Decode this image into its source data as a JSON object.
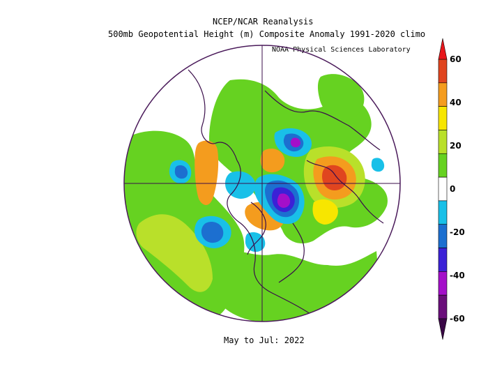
{
  "title": "NCEP/NCAR Reanalysis",
  "subtitle": "500mb Geopotential Height (m) Composite Anomaly 1991-2020 climo",
  "credit": "NOAA Physical Sciences Laboratory",
  "period": "May to Jul: 2022",
  "projection": "north-polar-stereographic",
  "colorbar": {
    "labels": [
      "60",
      "40",
      "20",
      "0",
      "-20",
      "-40",
      "-60"
    ],
    "levels": [
      {
        "range": "50 to 60",
        "color": "#e0451f"
      },
      {
        "range": "40 to 50",
        "color": "#f49c1e"
      },
      {
        "range": "30 to 40",
        "color": "#f7e600"
      },
      {
        "range": "20 to 30",
        "color": "#b9e02a"
      },
      {
        "range": "10 to 20",
        "color": "#66d221"
      },
      {
        "range": "-10 to 10",
        "color": "#ffffff"
      },
      {
        "range": "-20 to -10",
        "color": "#19c0e8"
      },
      {
        "range": "-30 to -20",
        "color": "#1c6fd0"
      },
      {
        "range": "-40 to -30",
        "color": "#3b21d6"
      },
      {
        "range": "-50 to -40",
        "color": "#a40fc9"
      },
      {
        "range": "-60 to -50",
        "color": "#6a0e7a"
      }
    ],
    "top_arrow_color": "#e8161b",
    "bottom_arrow_color": "#3a0746"
  },
  "colors": {
    "outline": "#4a1a5a",
    "coast": "#3a0e4a"
  }
}
